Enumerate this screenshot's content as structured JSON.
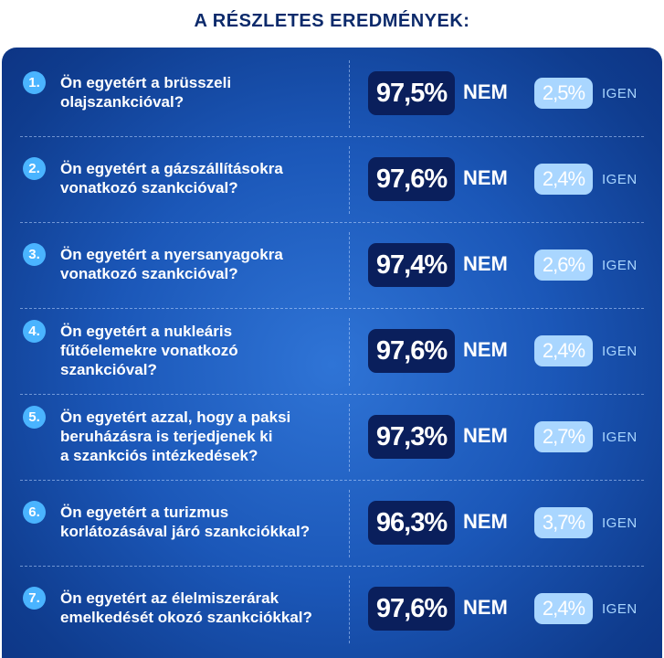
{
  "title": "A RÉSZLETES EREDMÉNYEK:",
  "chart_data": {
    "type": "table",
    "columns": [
      "NEM",
      "IGEN"
    ],
    "rows": [
      {
        "number": "1.",
        "question": "Ön egyetért a brüsszeli\nolajszankcióval?",
        "nem": "97,5%",
        "nem_label": "NEM",
        "igen": "2,5%",
        "igen_label": "IGEN"
      },
      {
        "number": "2.",
        "question": "Ön egyetért a gázszállításokra\nvonatkozó szankcióval?",
        "nem": "97,6%",
        "nem_label": "NEM",
        "igen": "2,4%",
        "igen_label": "IGEN"
      },
      {
        "number": "3.",
        "question": "Ön egyetért a nyersanyagokra\nvonatkozó szankcióval?",
        "nem": "97,4%",
        "nem_label": "NEM",
        "igen": "2,6%",
        "igen_label": "IGEN"
      },
      {
        "number": "4.",
        "question": "Ön egyetért a nukleáris\nfűtőelemekre vonatkozó\nszankcióval?",
        "nem": "97,6%",
        "nem_label": "NEM",
        "igen": "2,4%",
        "igen_label": "IGEN"
      },
      {
        "number": "5.",
        "question": "Ön egyetért azzal, hogy a paksi\nberuházásra is terjedjenek ki\na szankciós intézkedések?",
        "nem": "97,3%",
        "nem_label": "NEM",
        "igen": "2,7%",
        "igen_label": "IGEN"
      },
      {
        "number": "6.",
        "question": "Ön egyetért a turizmus\nkorlátozásával járó szankciókkal?",
        "nem": "96,3%",
        "nem_label": "NEM",
        "igen": "3,7%",
        "igen_label": "IGEN"
      },
      {
        "number": "7.",
        "question": "Ön egyetért az élelmiszerárak\nemelkedését okozó szankciókkal?",
        "nem": "97,6%",
        "nem_label": "NEM",
        "igen": "2,4%",
        "igen_label": "IGEN"
      }
    ]
  }
}
